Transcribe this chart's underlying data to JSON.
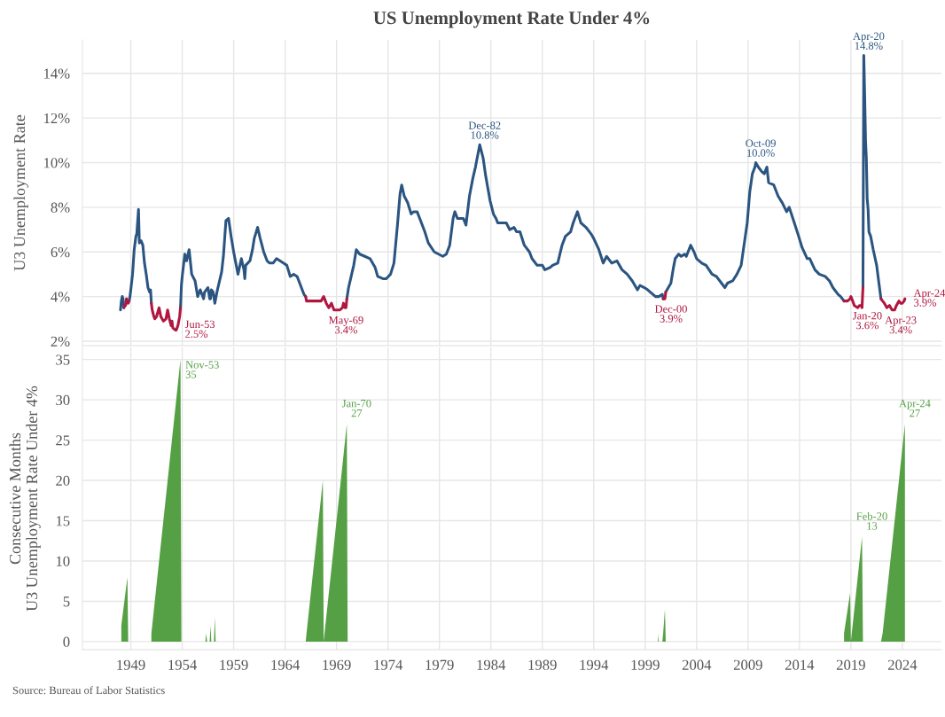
{
  "chart_data": [
    {
      "type": "line",
      "title": "US Unemployment Rate Under 4%",
      "ylabel": "U3 Unemployment Rate",
      "xlim": [
        1944.3,
        2027.8
      ],
      "ylim": [
        1.8,
        15.5
      ],
      "yticks": [
        {
          "value": 2,
          "label": "2%"
        },
        {
          "value": 4,
          "label": "4%"
        },
        {
          "value": 6,
          "label": "6%"
        },
        {
          "value": 8,
          "label": "8%"
        },
        {
          "value": 10,
          "label": "10%"
        },
        {
          "value": 12,
          "label": "12%"
        },
        {
          "value": 14,
          "label": "14%"
        }
      ],
      "tick_labels": "y",
      "grid": true,
      "legend": false,
      "series": [
        {
          "color": "#2b5580",
          "x": [
            1948.0,
            1948.08,
            1948.17,
            1948.25,
            1948.33,
            1948.5,
            1948.83,
            1948.92,
            1949.0,
            1949.17,
            1949.33,
            1949.5,
            1949.58,
            1949.75,
            1949.83,
            1950.0,
            1950.17,
            1950.33,
            1950.5,
            1950.67,
            1950.83,
            1950.92,
            1951.0,
            1952.0,
            1953.83,
            1953.92,
            1954.0,
            1954.25,
            1954.42,
            1954.67,
            1954.92,
            1955.25,
            1955.5,
            1955.75,
            1956.0,
            1956.08,
            1956.17,
            1956.5,
            1956.67,
            1956.75,
            1956.83,
            1957.0,
            1957.17,
            1957.25,
            1957.42,
            1957.83,
            1958.0,
            1958.25,
            1958.5,
            1958.75,
            1959.0,
            1959.42,
            1959.75,
            1960.0,
            1960.08,
            1960.17,
            1960.58,
            1960.83,
            1961.0,
            1961.33,
            1961.58,
            1961.92,
            1962.25,
            1962.5,
            1962.83,
            1963.17,
            1963.5,
            1963.83,
            1964.17,
            1964.5,
            1964.83,
            1965.17,
            1965.5,
            1965.83,
            1966.0,
            1968.0,
            1970.0,
            1970.17,
            1970.42,
            1970.67,
            1970.92,
            1971.25,
            1971.75,
            1972.25,
            1972.75,
            1973.0,
            1973.5,
            1973.83,
            1974.25,
            1974.58,
            1974.92,
            1975.17,
            1975.33,
            1975.58,
            1975.92,
            1976.25,
            1976.5,
            1976.83,
            1977.17,
            1977.58,
            1977.92,
            1978.5,
            1978.92,
            1979.33,
            1979.67,
            1980.0,
            1980.33,
            1980.5,
            1980.75,
            1981.0,
            1981.33,
            1981.58,
            1981.92,
            1982.25,
            1982.5,
            1982.75,
            1982.92,
            1983.25,
            1983.5,
            1983.92,
            1984.25,
            1984.5,
            1984.67,
            1985.0,
            1985.5,
            1985.83,
            1986.25,
            1986.5,
            1986.83,
            1987.25,
            1987.75,
            1988.0,
            1988.5,
            1989.0,
            1989.25,
            1989.75,
            1990.0,
            1990.5,
            1990.92,
            1991.25,
            1991.75,
            1992.0,
            1992.42,
            1992.75,
            1993.25,
            1993.75,
            1994.0,
            1994.5,
            1994.92,
            1995.25,
            1995.75,
            1996.25,
            1996.75,
            1997.25,
            1997.75,
            1998.25,
            1998.5,
            1998.92,
            1999.25,
            1999.75,
            2000.0,
            2000.33,
            2000.67,
            2000.75,
            2000.85,
            2001.0,
            2001.25,
            2001.5,
            2001.75,
            2001.92,
            2002.25,
            2002.5,
            2002.83,
            2003.0,
            2003.42,
            2003.75,
            2004.0,
            2004.5,
            2004.92,
            2005.5,
            2005.92,
            2006.42,
            2006.75,
            2007.0,
            2007.5,
            2007.92,
            2008.33,
            2008.67,
            2008.92,
            2009.17,
            2009.42,
            2009.67,
            2009.75,
            2010.0,
            2010.33,
            2010.58,
            2010.83,
            2011.0,
            2011.5,
            2011.92,
            2012.33,
            2012.75,
            2013.0,
            2013.5,
            2013.92,
            2014.25,
            2014.75,
            2015.0,
            2015.5,
            2015.92,
            2016.5,
            2016.92,
            2017.25,
            2017.75,
            2018.0,
            2018.33,
            2019.0,
            2020.17,
            2020.25,
            2020.33,
            2020.42,
            2020.5,
            2020.58,
            2020.67,
            2020.75,
            2020.92,
            2021.17,
            2021.5,
            2021.75,
            2021.92
          ],
          "values": [
            3.4,
            3.8,
            4.0,
            3.9,
            3.5,
            null,
            3.8,
            4.0,
            4.3,
            5.0,
            6.1,
            6.7,
            6.8,
            7.9,
            6.4,
            6.5,
            6.3,
            5.5,
            5.0,
            4.4,
            4.2,
            4.3,
            3.7,
            null,
            3.5,
            4.5,
            4.9,
            5.9,
            5.6,
            6.1,
            5.0,
            4.7,
            4.0,
            4.3,
            4.0,
            3.9,
            4.2,
            4.4,
            3.9,
            3.9,
            4.3,
            4.2,
            3.7,
            3.9,
            4.3,
            5.1,
            5.8,
            7.4,
            7.5,
            6.7,
            6.0,
            5.0,
            5.7,
            5.2,
            4.8,
            5.4,
            5.6,
            6.1,
            6.6,
            7.1,
            6.6,
            6.0,
            5.6,
            5.5,
            5.5,
            5.7,
            5.6,
            5.5,
            5.4,
            4.9,
            5.0,
            4.9,
            4.5,
            4.1,
            4.0,
            null,
            3.9,
            4.4,
            4.9,
            5.4,
            6.1,
            5.9,
            5.8,
            5.7,
            5.3,
            4.9,
            4.8,
            4.8,
            5.0,
            5.5,
            7.2,
            8.6,
            9.0,
            8.5,
            8.2,
            7.7,
            7.8,
            7.8,
            7.4,
            6.9,
            6.4,
            6.0,
            5.9,
            5.8,
            5.9,
            6.3,
            7.5,
            7.8,
            7.5,
            7.5,
            7.5,
            7.2,
            8.5,
            9.3,
            9.8,
            10.4,
            10.8,
            10.2,
            9.4,
            8.3,
            7.7,
            7.5,
            7.3,
            7.3,
            7.3,
            7.0,
            7.1,
            6.9,
            6.9,
            6.3,
            6.0,
            5.7,
            5.4,
            5.4,
            5.2,
            5.3,
            5.4,
            5.5,
            6.3,
            6.7,
            6.9,
            7.3,
            7.8,
            7.3,
            7.1,
            6.8,
            6.6,
            6.1,
            5.5,
            5.8,
            5.5,
            5.6,
            5.2,
            5.0,
            4.7,
            4.3,
            4.5,
            4.4,
            4.3,
            4.1,
            4.0,
            4.0,
            4.1,
            3.9,
            null,
            4.2,
            4.4,
            4.6,
            5.3,
            5.7,
            5.9,
            5.8,
            5.9,
            5.8,
            6.3,
            6.0,
            5.7,
            5.5,
            5.4,
            5.0,
            4.9,
            4.6,
            4.4,
            4.6,
            4.7,
            5.0,
            5.4,
            6.5,
            7.3,
            8.7,
            9.5,
            9.8,
            10.0,
            9.8,
            9.6,
            9.5,
            9.8,
            9.1,
            9.0,
            8.5,
            8.2,
            7.8,
            8.0,
            7.3,
            6.7,
            6.2,
            5.7,
            5.7,
            5.2,
            5.0,
            4.9,
            4.7,
            4.4,
            4.1,
            4.0,
            3.8,
            null,
            4.4,
            14.8,
            13.2,
            11.0,
            10.2,
            8.4,
            7.9,
            6.9,
            6.7,
            6.1,
            5.4,
            4.5,
            3.9
          ]
        },
        {
          "color": "#b0163f",
          "x": [
            1948.33,
            1948.42,
            1948.5,
            1948.58,
            1948.67,
            1948.75,
            1948.83,
            1950.5,
            1951.0,
            1951.08,
            1951.25,
            1951.33,
            1951.5,
            1951.75,
            1951.92,
            1952.17,
            1952.42,
            1952.58,
            1952.75,
            1952.92,
            1953.0,
            1953.08,
            1953.33,
            1953.42,
            1953.58,
            1953.75,
            1953.83,
            1960.0,
            1966.0,
            1966.08,
            1966.5,
            1966.92,
            1967.25,
            1967.5,
            1967.75,
            1967.92,
            1968.0,
            1968.25,
            1968.5,
            1968.75,
            1969.0,
            1969.33,
            1969.58,
            1969.67,
            1969.83,
            1969.92,
            1970.0,
            1985.0,
            2000.75,
            2000.83,
            2000.92,
            2001.0,
            2010.0,
            2018.33,
            2018.42,
            2018.67,
            2018.92,
            2019.0,
            2019.17,
            2019.33,
            2019.67,
            2019.83,
            2020.0,
            2020.08,
            2020.17,
            2021.0,
            2021.92,
            2022.08,
            2022.25,
            2022.5,
            2022.75,
            2023.0,
            2023.25,
            2023.42,
            2023.67,
            2023.83,
            2024.0,
            2024.17,
            2024.25
          ],
          "values": [
            3.5,
            3.6,
            3.6,
            3.9,
            3.8,
            3.7,
            3.8,
            null,
            3.7,
            3.4,
            3.1,
            3.0,
            3.1,
            3.5,
            3.1,
            2.9,
            3.0,
            3.4,
            3.0,
            2.7,
            2.9,
            2.6,
            2.5,
            2.5,
            2.7,
            3.1,
            3.5,
            null,
            4.0,
            3.8,
            3.8,
            3.8,
            3.8,
            3.8,
            4.0,
            3.8,
            3.7,
            3.5,
            3.7,
            3.4,
            3.4,
            3.4,
            3.5,
            3.7,
            3.5,
            3.5,
            3.9,
            null,
            3.9,
            3.9,
            3.9,
            4.2,
            null,
            3.8,
            3.8,
            3.8,
            3.9,
            4.0,
            3.8,
            3.6,
            3.5,
            3.6,
            3.6,
            3.5,
            4.4,
            null,
            3.9,
            3.8,
            3.7,
            3.5,
            3.6,
            3.4,
            3.4,
            3.6,
            3.8,
            3.7,
            3.7,
            3.8,
            3.9
          ]
        }
      ],
      "annotations": [
        {
          "text": "Jun-53\n2.5%",
          "x": 1953.42,
          "y": 2.5
        },
        {
          "text": "May-69\n3.4%",
          "x": 1969.33,
          "y": 3.4
        },
        {
          "text": "Dec-82\n10.8%",
          "x": 1982.92,
          "y": 10.8
        },
        {
          "text": "Dec-00\n3.9%",
          "x": 2000.92,
          "y": 3.9
        },
        {
          "text": "Oct-09\n10.0%",
          "x": 2009.75,
          "y": 10.0
        },
        {
          "text": "Apr-20\n14.8%",
          "x": 2020.25,
          "y": 14.8
        },
        {
          "text": "Jan-20\n3.6%",
          "x": 2020.0,
          "y": 3.6
        },
        {
          "text": "Apr-23\n3.4%",
          "x": 2023.25,
          "y": 3.4
        },
        {
          "text": "Apr-24\n3.9%",
          "x": 2024.25,
          "y": 3.9
        }
      ]
    },
    {
      "type": "area",
      "ylabel": "Consecutive Months\nU3 Unemployment Rate Under 4%",
      "xlim": [
        1944.3,
        2027.8
      ],
      "ylim": [
        -1,
        36.5
      ],
      "xticks": [
        1949,
        1954,
        1959,
        1964,
        1969,
        1974,
        1979,
        1984,
        1989,
        1994,
        1999,
        2004,
        2009,
        2014,
        2019,
        2024
      ],
      "yticks": [
        0,
        5,
        10,
        15,
        20,
        25,
        30,
        35
      ],
      "grid": true,
      "legend": false,
      "series": [
        {
          "color": "#55a044",
          "x": [
            1948.08,
            1948.08,
            1948.67,
            1948.75,
            1951.0,
            1951.0,
            1953.83,
            1953.92,
            1956.25,
            1956.33,
            1956.42,
            1956.67,
            1956.75,
            1956.83,
            1957.08,
            1957.17,
            1957.25,
            1966.0,
            1966.08,
            1967.67,
            1967.75,
            1967.83,
            1970.0,
            1970.08,
            2000.25,
            2000.25,
            2000.33,
            2000.67,
            2000.75,
            2000.92,
            2001.0,
            2018.33,
            2018.33,
            2018.92,
            2019.0,
            2019.08,
            2020.08,
            2020.17,
            2021.92,
            2022.08,
            2024.25
          ],
          "values": [
            0,
            2,
            8,
            0,
            0,
            1,
            35,
            0,
            0,
            1,
            0,
            0,
            2,
            0,
            0,
            3,
            0,
            0,
            1,
            20,
            0,
            1,
            27,
            0,
            0,
            1,
            0,
            0,
            1,
            4,
            0,
            0,
            1,
            6,
            0,
            1,
            13,
            0,
            0,
            1,
            27
          ]
        }
      ],
      "annotations": [
        {
          "text": "Nov-53\n35",
          "x": 1953.83,
          "y": 35
        },
        {
          "text": "Jan-70\n27",
          "x": 1970.0,
          "y": 27
        },
        {
          "text": "Feb-20\n13",
          "x": 2020.08,
          "y": 13
        },
        {
          "text": "Apr-24\n27",
          "x": 2024.25,
          "y": 27
        },
        "Source: Bureau of Labor Statistics"
      ]
    }
  ]
}
